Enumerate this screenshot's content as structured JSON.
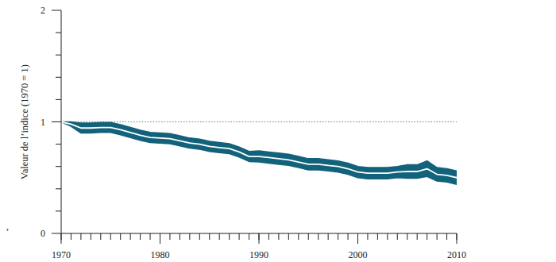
{
  "chart_data": {
    "type": "line",
    "y_label": "Valeur de l’indice (1970 = 1)",
    "annotations": [
      ","
    ],
    "x": [
      1970,
      1971,
      1972,
      1973,
      1974,
      1975,
      1976,
      1977,
      1978,
      1979,
      1980,
      1981,
      1982,
      1983,
      1984,
      1985,
      1986,
      1987,
      1988,
      1989,
      1990,
      1991,
      1992,
      1993,
      1994,
      1995,
      1996,
      1997,
      1998,
      1999,
      2000,
      2001,
      2002,
      2003,
      2004,
      2005,
      2006,
      2007,
      2008,
      2009,
      2010
    ],
    "values": [
      1.0,
      0.98,
      0.945,
      0.945,
      0.95,
      0.95,
      0.93,
      0.905,
      0.88,
      0.86,
      0.855,
      0.85,
      0.83,
      0.81,
      0.8,
      0.78,
      0.77,
      0.76,
      0.73,
      0.69,
      0.69,
      0.68,
      0.67,
      0.66,
      0.64,
      0.62,
      0.62,
      0.61,
      0.6,
      0.58,
      0.55,
      0.54,
      0.54,
      0.54,
      0.55,
      0.555,
      0.555,
      0.58,
      0.53,
      0.52,
      0.5
    ],
    "upper": [
      1.0,
      1.0,
      0.99,
      0.99,
      0.995,
      0.995,
      0.975,
      0.95,
      0.925,
      0.905,
      0.9,
      0.895,
      0.875,
      0.855,
      0.845,
      0.825,
      0.815,
      0.805,
      0.775,
      0.735,
      0.74,
      0.73,
      0.72,
      0.71,
      0.69,
      0.67,
      0.67,
      0.66,
      0.65,
      0.63,
      0.6,
      0.59,
      0.59,
      0.59,
      0.6,
      0.615,
      0.615,
      0.65,
      0.59,
      0.58,
      0.56
    ],
    "lower": [
      1.0,
      0.96,
      0.9,
      0.9,
      0.905,
      0.905,
      0.885,
      0.86,
      0.835,
      0.815,
      0.81,
      0.805,
      0.785,
      0.765,
      0.755,
      0.735,
      0.725,
      0.715,
      0.685,
      0.645,
      0.64,
      0.63,
      0.62,
      0.61,
      0.59,
      0.57,
      0.57,
      0.56,
      0.55,
      0.53,
      0.5,
      0.49,
      0.49,
      0.49,
      0.5,
      0.495,
      0.495,
      0.51,
      0.47,
      0.46,
      0.44
    ],
    "color": "#ffffff",
    "band_color": "#13627b",
    "reference_line": {
      "value": 1,
      "color": "#4f8f4f",
      "line_style": "dotted"
    },
    "xlim": [
      1970,
      2010
    ],
    "xticks": [
      1970,
      1980,
      1990,
      2000,
      2010
    ],
    "ylim": [
      0,
      2
    ],
    "yticks": [
      0,
      1,
      2
    ],
    "y_minor_ticks": [
      0.2,
      0.4,
      0.6,
      0.8,
      1.2,
      1.4,
      1.6,
      1.8
    ],
    "grid": false
  }
}
